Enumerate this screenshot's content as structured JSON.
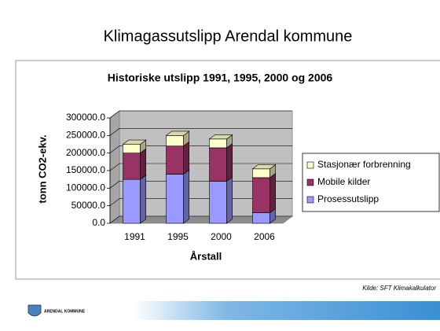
{
  "title": "Klimagassutslipp Arendal kommune",
  "source": "Kilde: SFT Klimakalkulator",
  "footer": "ARENDAL KOMMUNE",
  "chart_data": {
    "type": "bar",
    "stacked": true,
    "title": "Historiske utslipp 1991, 1995, 2000 og 2006",
    "x_label": "Årstall",
    "y_label": "tonn CO2-ekv.",
    "categories": [
      "1991",
      "1995",
      "2000",
      "2006"
    ],
    "series": [
      {
        "name": "Prosessutslipp",
        "color": "#9999ff",
        "values": [
          125000,
          140000,
          120000,
          30000
        ]
      },
      {
        "name": "Mobile kilder",
        "color": "#993366",
        "values": [
          75000,
          80000,
          95000,
          100000
        ]
      },
      {
        "name": "Stasjonær forbrenning",
        "color": "#ffffcc",
        "values": [
          25000,
          30000,
          25000,
          25000
        ]
      }
    ],
    "ylim": [
      0,
      300000
    ],
    "yticks": [
      {
        "value": 0,
        "label": "0.0"
      },
      {
        "value": 50000,
        "label": "50000.0"
      },
      {
        "value": 100000,
        "label": "100000.0"
      },
      {
        "value": 150000,
        "label": "150000.0"
      },
      {
        "value": 200000,
        "label": "200000.0"
      },
      {
        "value": 250000,
        "label": "250000.0"
      },
      {
        "value": 300000,
        "label": "300000.0"
      }
    ],
    "grid": true,
    "legend": "right"
  }
}
